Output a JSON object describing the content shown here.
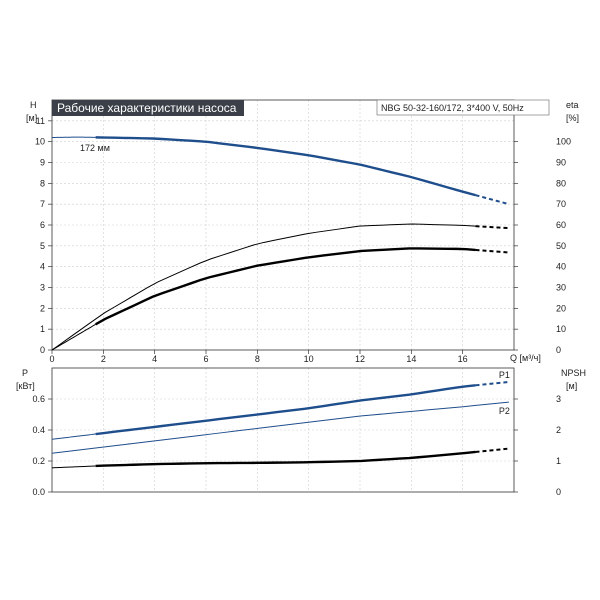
{
  "chart_data": {
    "title": "Рабочие характеристики насоса",
    "model": "NBG 50-32-160/172, 3*400 V, 50Hz",
    "impeller_label": "172 мм",
    "x_axis": {
      "label": "Q [м³/ч]",
      "range": [
        0,
        18
      ],
      "ticks": [
        0,
        2,
        4,
        6,
        8,
        10,
        12,
        14,
        16
      ]
    },
    "top_chart": {
      "type": "line",
      "grid": true,
      "left_axis": {
        "label_name": "H",
        "label_unit": "[м]",
        "range": [
          0,
          12
        ],
        "ticks": [
          0,
          1,
          2,
          3,
          4,
          5,
          6,
          7,
          8,
          9,
          10,
          11
        ]
      },
      "right_axis": {
        "label_name": "eta",
        "label_unit": "[%]",
        "range": [
          0,
          120
        ],
        "ticks": [
          0,
          10,
          20,
          30,
          40,
          50,
          60,
          70,
          80,
          90,
          100
        ]
      },
      "series": [
        {
          "key": "head",
          "axis": "left",
          "color": "#1f4e8c",
          "thin_range": [
            0,
            1.7
          ],
          "bold_range": [
            1.7,
            16.5
          ],
          "dash_range": [
            16.5,
            17.8
          ],
          "points": [
            [
              0,
              10.2
            ],
            [
              1,
              10.22
            ],
            [
              2,
              10.2
            ],
            [
              4,
              10.15
            ],
            [
              6,
              10.0
            ],
            [
              8,
              9.7
            ],
            [
              10,
              9.35
            ],
            [
              12,
              8.9
            ],
            [
              14,
              8.3
            ],
            [
              16,
              7.6
            ],
            [
              17.8,
              7.0
            ]
          ]
        },
        {
          "key": "eta_thin",
          "axis": "left",
          "color": "#000000",
          "thin_range": [
            0,
            16.5
          ],
          "bold_range": null,
          "dash_range": [
            16.5,
            17.8
          ],
          "points": [
            [
              0,
              0
            ],
            [
              2,
              1.75
            ],
            [
              4,
              3.2
            ],
            [
              6,
              4.3
            ],
            [
              8,
              5.1
            ],
            [
              10,
              5.6
            ],
            [
              12,
              5.95
            ],
            [
              14,
              6.05
            ],
            [
              16,
              5.98
            ],
            [
              17.8,
              5.85
            ]
          ]
        },
        {
          "key": "eta_bold",
          "axis": "left",
          "color": "#000000",
          "thin_range": [
            0,
            1.7
          ],
          "bold_range": [
            1.7,
            16.5
          ],
          "dash_range": [
            16.5,
            17.8
          ],
          "points": [
            [
              0,
              0
            ],
            [
              2,
              1.45
            ],
            [
              4,
              2.6
            ],
            [
              6,
              3.45
            ],
            [
              8,
              4.05
            ],
            [
              10,
              4.45
            ],
            [
              12,
              4.75
            ],
            [
              14,
              4.88
            ],
            [
              16,
              4.85
            ],
            [
              17.8,
              4.68
            ]
          ]
        }
      ]
    },
    "bottom_chart": {
      "type": "line",
      "grid": true,
      "left_axis": {
        "label_name": "P",
        "label_unit": "[кВт]",
        "range": [
          0,
          0.8
        ],
        "ticks": [
          0.0,
          0.2,
          0.4,
          0.6
        ],
        "tick_labels": [
          "0.0",
          "0.2",
          "0.4",
          "0.6"
        ]
      },
      "right_axis": {
        "label_name": "NPSH",
        "label_unit": "[м]",
        "range": [
          0,
          4
        ],
        "ticks": [
          0,
          1,
          2,
          3
        ]
      },
      "series": [
        {
          "key": "p1",
          "name": "P1",
          "axis": "left",
          "color": "#1f4e8c",
          "thin_range": [
            0,
            1.7
          ],
          "bold_range": [
            1.7,
            16.5
          ],
          "dash_range": [
            16.5,
            17.8
          ],
          "points": [
            [
              0,
              0.34
            ],
            [
              2,
              0.38
            ],
            [
              4,
              0.42
            ],
            [
              6,
              0.46
            ],
            [
              8,
              0.5
            ],
            [
              10,
              0.54
            ],
            [
              12,
              0.59
            ],
            [
              14,
              0.63
            ],
            [
              16,
              0.68
            ],
            [
              17.8,
              0.71
            ]
          ]
        },
        {
          "key": "p2",
          "name": "P2",
          "axis": "left",
          "color": "#1f4e8c",
          "thin_range": [
            0,
            17.8
          ],
          "bold_range": null,
          "dash_range": null,
          "points": [
            [
              0,
              0.25
            ],
            [
              2,
              0.29
            ],
            [
              4,
              0.33
            ],
            [
              6,
              0.37
            ],
            [
              8,
              0.41
            ],
            [
              10,
              0.45
            ],
            [
              12,
              0.49
            ],
            [
              14,
              0.52
            ],
            [
              16,
              0.55
            ],
            [
              17.8,
              0.58
            ]
          ]
        },
        {
          "key": "npsh",
          "axis": "right",
          "color": "#000000",
          "thin_range": [
            0,
            1.7
          ],
          "bold_range": [
            1.7,
            16.5
          ],
          "dash_range": [
            16.5,
            17.8
          ],
          "points": [
            [
              0,
              0.78
            ],
            [
              2,
              0.85
            ],
            [
              4,
              0.9
            ],
            [
              6,
              0.93
            ],
            [
              8,
              0.94
            ],
            [
              10,
              0.96
            ],
            [
              12,
              1.0
            ],
            [
              14,
              1.1
            ],
            [
              16,
              1.25
            ],
            [
              17.8,
              1.4
            ]
          ]
        }
      ]
    }
  }
}
